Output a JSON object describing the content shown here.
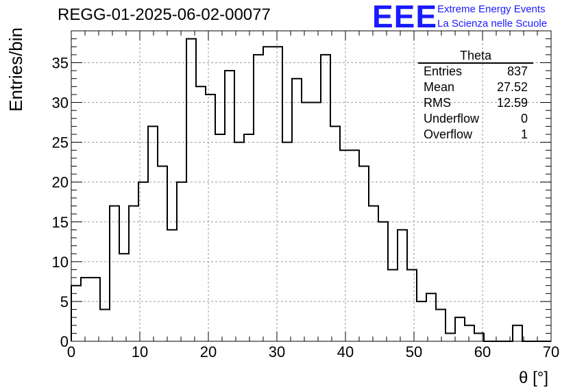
{
  "title": "REGG-01-2025-06-02-00077",
  "logo": {
    "mark": "EEE",
    "line1": "Extreme Energy Events",
    "line2": "La Scienza nelle Scuole"
  },
  "stats": {
    "title": "Theta",
    "rows": [
      {
        "label": "Entries",
        "value": "837"
      },
      {
        "label": "Mean",
        "value": "27.52"
      },
      {
        "label": "RMS",
        "value": "12.59"
      },
      {
        "label": "Underflow",
        "value": "0"
      },
      {
        "label": "Overflow",
        "value": "1"
      }
    ]
  },
  "chart_data": {
    "type": "histogram",
    "xlabel": "θ [°]",
    "ylabel": "Entries/bin",
    "xlim": [
      0,
      70
    ],
    "ylim": [
      0,
      39
    ],
    "x_ticks": [
      0,
      10,
      20,
      30,
      40,
      50,
      60,
      70
    ],
    "y_ticks": [
      0,
      5,
      10,
      15,
      20,
      25,
      30,
      35
    ],
    "grid": true,
    "bin_width": 1.4,
    "bin_edges_start": 0,
    "values": [
      7,
      8,
      8,
      4,
      17,
      11,
      17,
      20,
      27,
      22,
      14,
      20,
      38,
      32,
      31,
      26,
      34,
      25,
      26,
      36,
      37,
      37,
      25,
      33,
      30,
      30,
      36,
      27,
      24,
      24,
      22,
      17,
      15,
      9,
      14,
      9,
      5,
      6,
      4,
      1,
      3,
      2,
      1,
      0,
      0,
      0,
      2,
      0,
      0,
      0
    ],
    "colors": {
      "line": "#000000",
      "grid": "#9a9a9a"
    }
  }
}
